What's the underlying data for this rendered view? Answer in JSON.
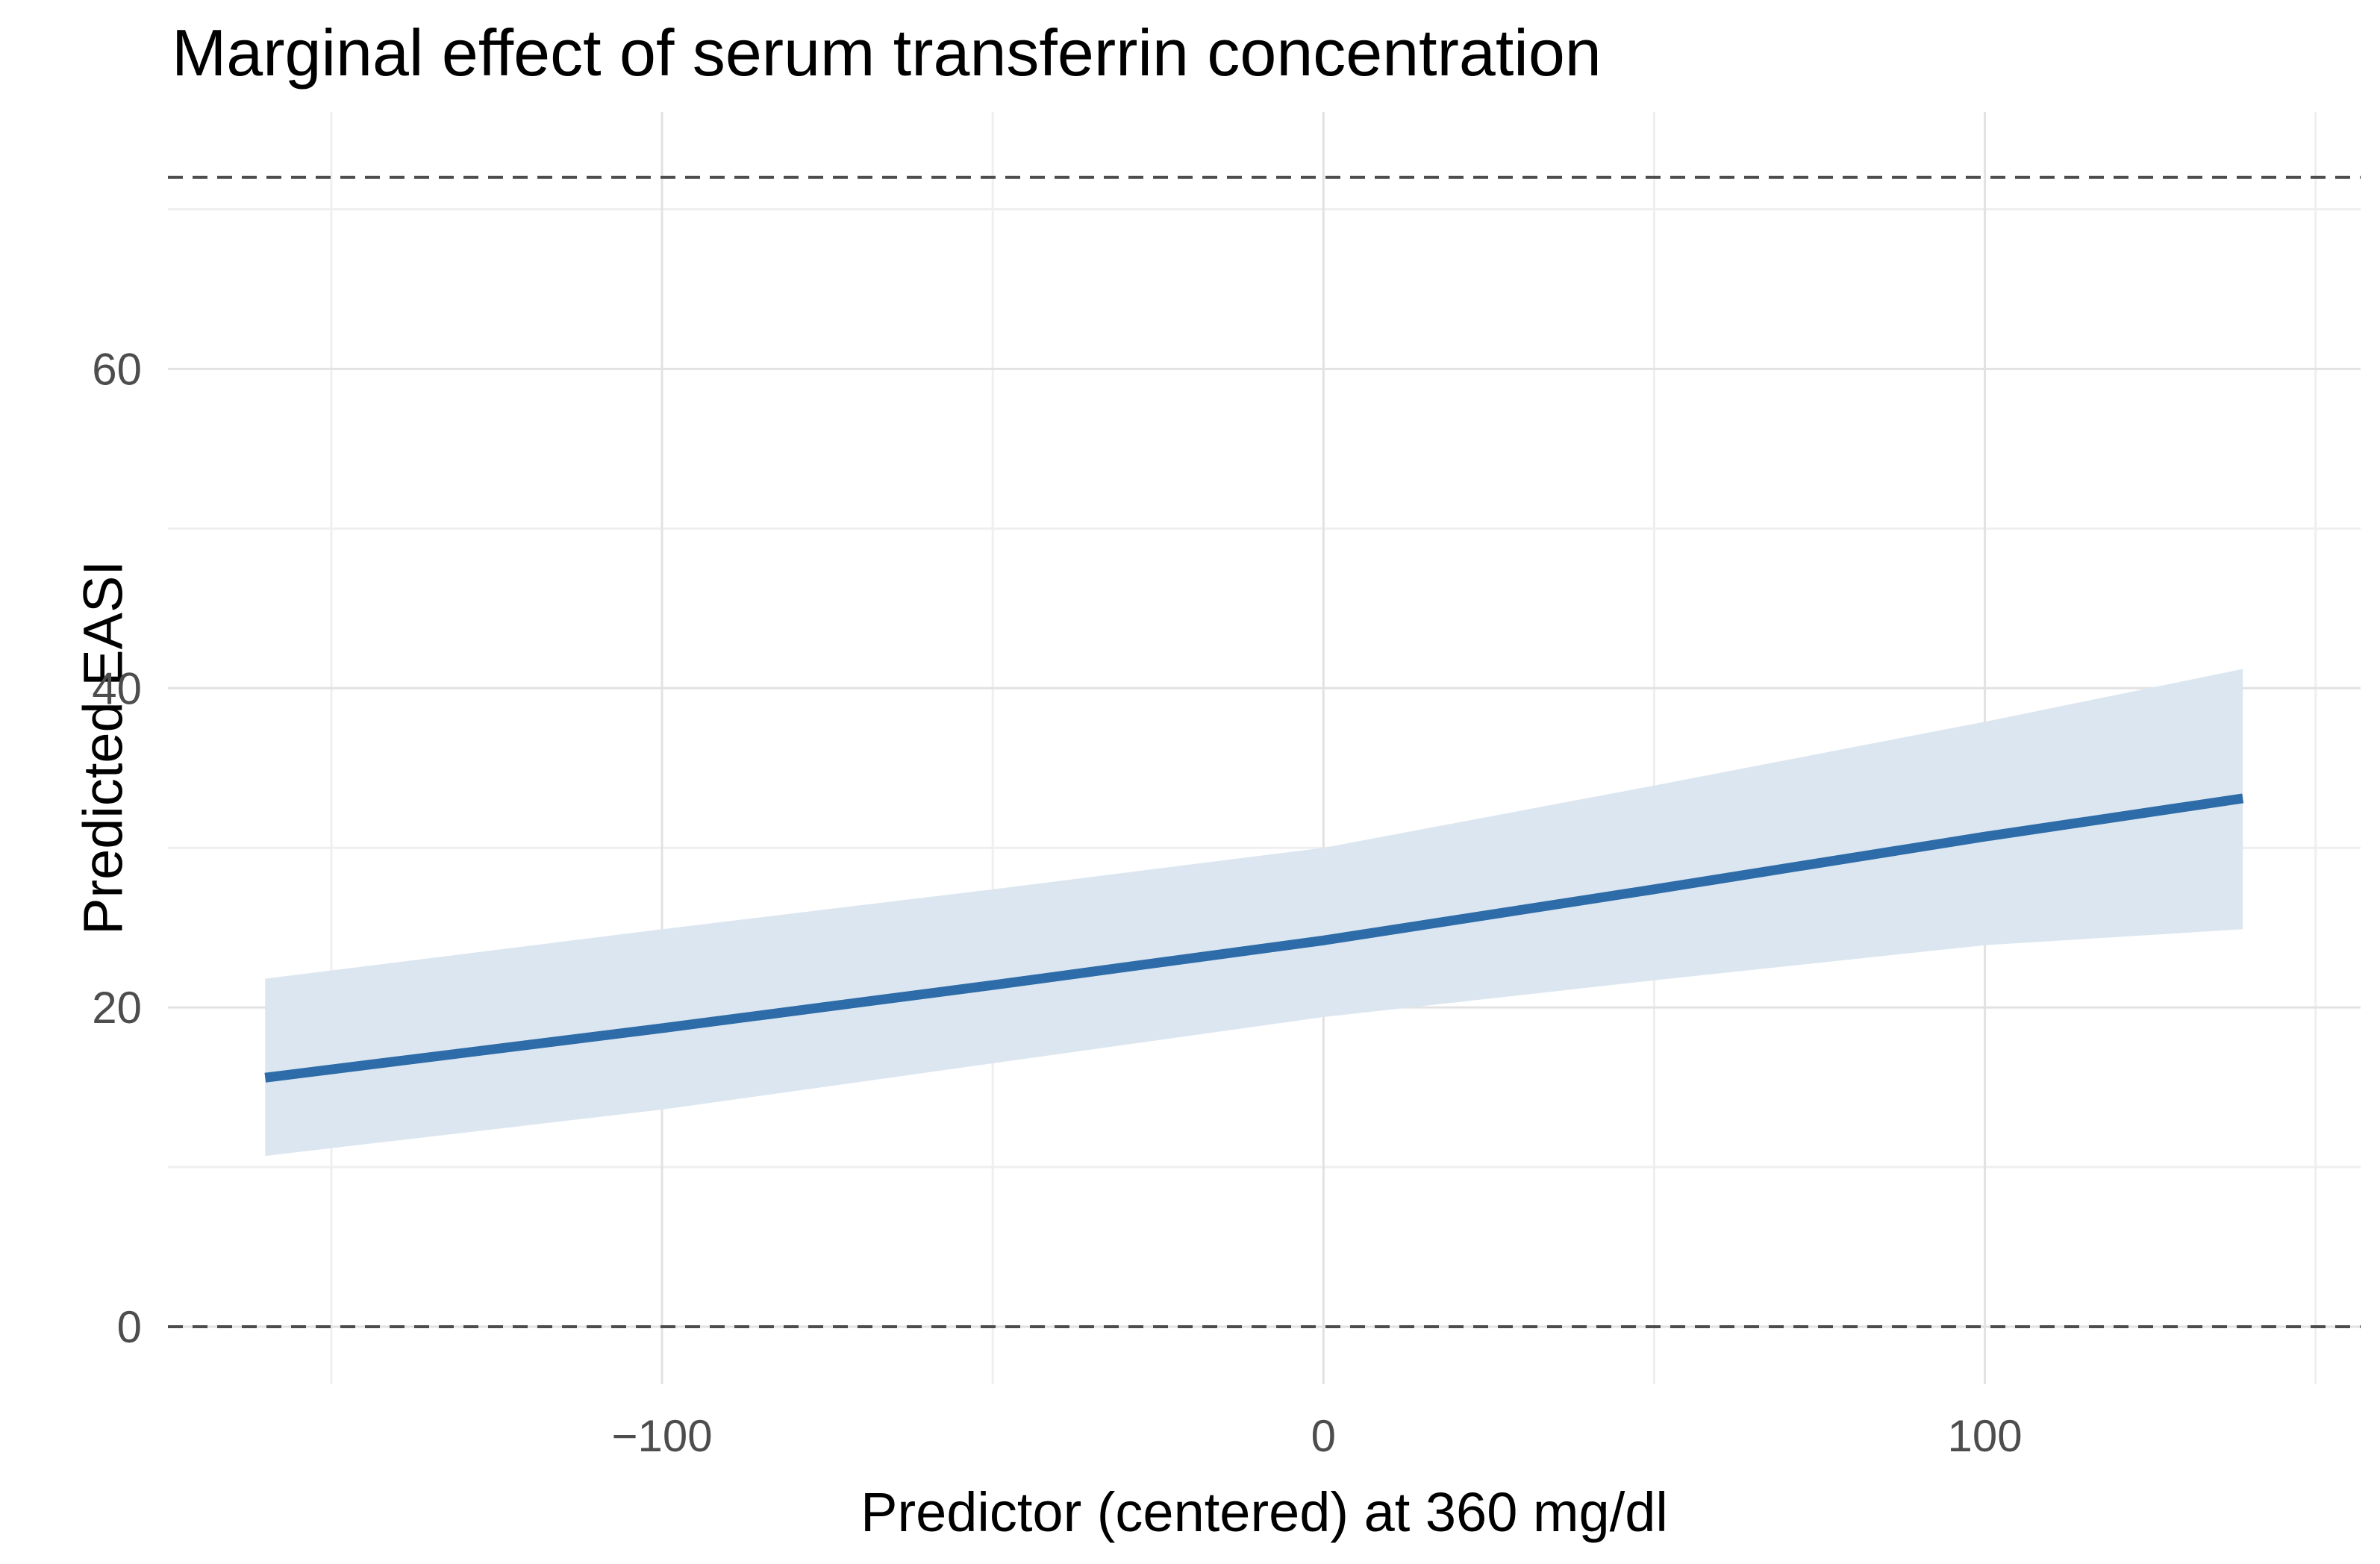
{
  "title": "Marginal effect of serum transferrin concentration",
  "chart_data": {
    "type": "line",
    "title": "Marginal effect of serum transferrin concentration",
    "xlabel": "Predictor (centered) at 360 mg/dl",
    "ylabel": "Predicted EASI",
    "x": [
      -160,
      -100,
      -50,
      0,
      50,
      100,
      139
    ],
    "series": [
      {
        "name": "predicted-line",
        "values": [
          15.6,
          18.7,
          21.4,
          24.2,
          27.4,
          30.7,
          33.1
        ]
      },
      {
        "name": "ci-lower",
        "values": [
          10.7,
          13.6,
          16.5,
          19.4,
          21.7,
          23.9,
          24.9
        ]
      },
      {
        "name": "ci-upper",
        "values": [
          21.8,
          24.9,
          27.4,
          30.0,
          33.9,
          37.9,
          41.2
        ]
      }
    ],
    "x_tick_labels": [
      "−100",
      "0",
      "100"
    ],
    "x_ticks_major": [
      -100,
      0,
      100
    ],
    "x_ticks_minor": [
      -150,
      -50,
      50,
      150
    ],
    "y_tick_labels": [
      "0",
      "20",
      "40",
      "60"
    ],
    "y_ticks_major": [
      0,
      20,
      40,
      60
    ],
    "y_ticks_minor": [
      10,
      30,
      50,
      70
    ],
    "xlim": [
      -174.7,
      156.8
    ],
    "ylim": [
      -3.6,
      76.1
    ],
    "reference_lines_y": [
      0,
      72
    ],
    "grid": true,
    "legend": "none",
    "colors": {
      "line": "#2d6ca8",
      "ribbon": "#dce6f0",
      "grid_major": "#e2e2e2",
      "grid_minor": "#efefef",
      "reference_line": "#4d4d4d",
      "tick_text": "#4d4d4d",
      "title_text": "#000000"
    }
  }
}
